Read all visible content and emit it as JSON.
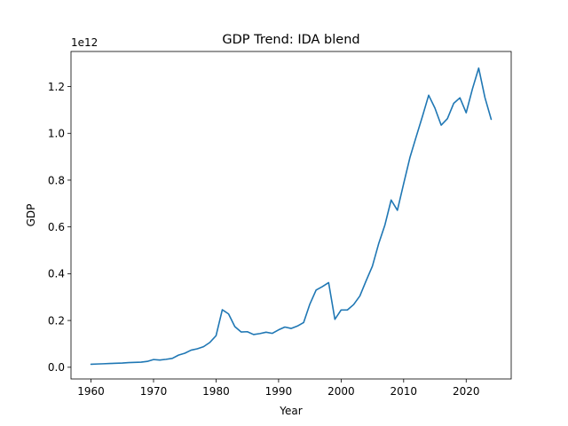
{
  "chart_data": {
    "type": "line",
    "title": "GDP Trend: IDA blend",
    "xlabel": "Year",
    "ylabel": "GDP",
    "y_offset_label": "1e12",
    "xlim": [
      1956.8,
      2027.2
    ],
    "ylim": [
      -0.05,
      1.35
    ],
    "x_ticks": [
      1960,
      1970,
      1980,
      1990,
      2000,
      2010,
      2020
    ],
    "y_ticks": [
      0.0,
      0.2,
      0.4,
      0.6,
      0.8,
      1.0,
      1.2
    ],
    "y_tick_labels": [
      "0.0",
      "0.2",
      "0.4",
      "0.6",
      "0.8",
      "1.0",
      "1.2"
    ],
    "grid": false,
    "series": [
      {
        "color": "#1f77b4",
        "x": [
          1960,
          1961,
          1962,
          1963,
          1964,
          1965,
          1966,
          1967,
          1968,
          1969,
          1970,
          1971,
          1972,
          1973,
          1974,
          1975,
          1976,
          1977,
          1978,
          1979,
          1980,
          1981,
          1982,
          1983,
          1984,
          1985,
          1986,
          1987,
          1988,
          1989,
          1990,
          1991,
          1992,
          1993,
          1994,
          1995,
          1996,
          1997,
          1998,
          1999,
          2000,
          2001,
          2002,
          2003,
          2004,
          2005,
          2006,
          2007,
          2008,
          2009,
          2010,
          2011,
          2012,
          2013,
          2014,
          2015,
          2016,
          2017,
          2018,
          2019,
          2020,
          2021,
          2022,
          2023,
          2024
        ],
        "y": [
          0.013,
          0.014,
          0.015,
          0.016,
          0.017,
          0.018,
          0.02,
          0.021,
          0.022,
          0.025,
          0.033,
          0.031,
          0.034,
          0.038,
          0.052,
          0.06,
          0.073,
          0.079,
          0.088,
          0.106,
          0.135,
          0.246,
          0.228,
          0.174,
          0.151,
          0.152,
          0.14,
          0.144,
          0.15,
          0.145,
          0.16,
          0.172,
          0.166,
          0.176,
          0.191,
          0.27,
          0.33,
          0.345,
          0.362,
          0.205,
          0.245,
          0.245,
          0.268,
          0.305,
          0.37,
          0.432,
          0.528,
          0.608,
          0.715,
          0.671,
          0.785,
          0.896,
          0.985,
          1.072,
          1.163,
          1.108,
          1.035,
          1.063,
          1.128,
          1.152,
          1.088,
          1.19,
          1.279,
          1.153,
          1.06
        ]
      }
    ]
  }
}
